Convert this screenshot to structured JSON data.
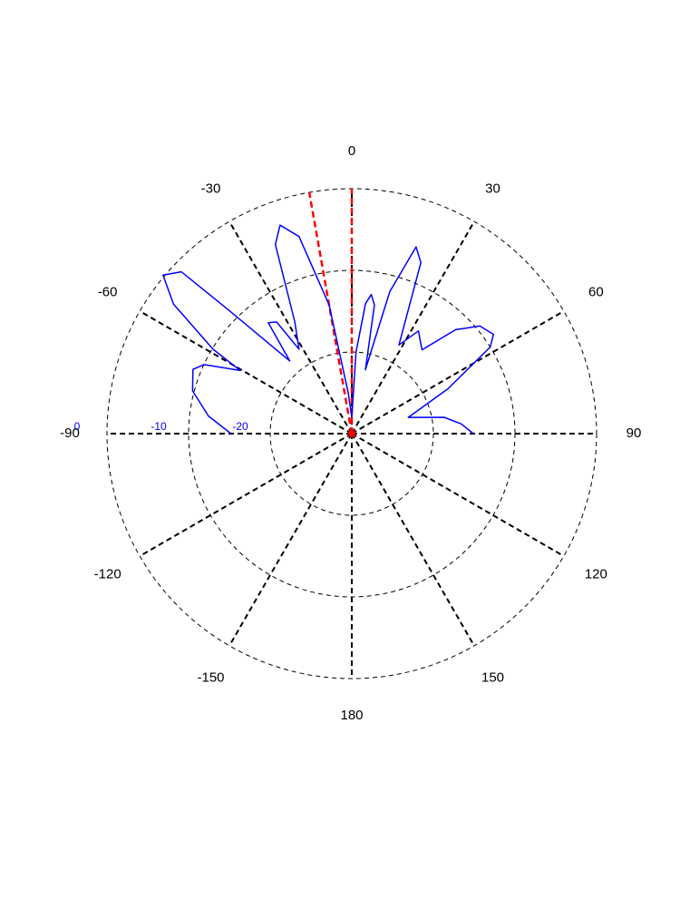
{
  "chart_data": {
    "type": "polar",
    "x": [
      -90,
      -83,
      -75,
      -68,
      -65,
      -60.5,
      -58.7,
      -54,
      -50,
      -46.5,
      -45,
      -40.5,
      -37,
      -34,
      -32,
      -27,
      -22,
      -19,
      -15,
      -10,
      -5,
      0,
      3,
      6,
      8,
      10,
      12,
      15,
      19,
      22,
      28,
      33,
      37,
      40,
      45,
      50,
      55,
      58,
      65,
      74,
      80,
      85,
      90
    ],
    "values": [
      -15.2,
      -12.3,
      -9.8,
      -9.0,
      -10,
      -14.3,
      -10.1,
      -3,
      0.2,
      -1.2,
      -8.3,
      -18.3,
      -13,
      -13.5,
      -17.8,
      -14.6,
      -5,
      -3,
      -5,
      -14,
      -25,
      -28,
      -20,
      -14,
      -12.8,
      -14,
      -22,
      -12,
      -5.8,
      -7.4,
      -17.7,
      -15,
      -16,
      -16.6,
      -12,
      -9.5,
      -8.8,
      -10,
      -17,
      -22.8,
      -18.5,
      -16.5,
      -15.1
    ],
    "color": "#0000ff",
    "markers": {
      "x": [
        0,
        -10
      ],
      "values": [
        0,
        0
      ],
      "color": "#ff0000"
    },
    "xticks": [
      0,
      30,
      60,
      90,
      120,
      150,
      180,
      -150,
      -120,
      -90,
      -60,
      -30
    ],
    "ylim": [
      -30,
      0
    ],
    "yticks": [
      -20,
      -10,
      0
    ]
  }
}
